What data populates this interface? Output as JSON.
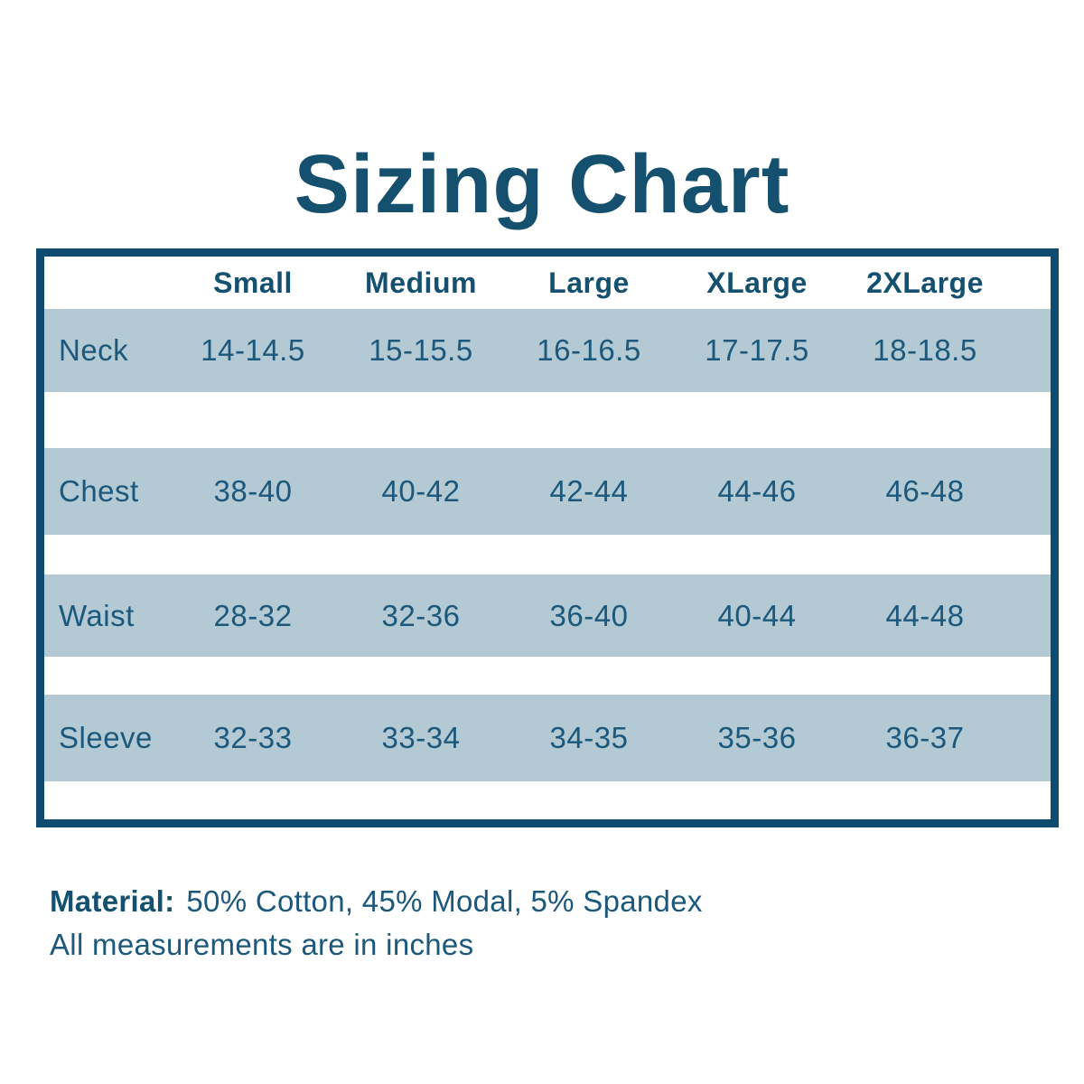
{
  "page": {
    "title": "Sizing Chart",
    "footer": {
      "material_label": "Material:",
      "material_value": "50% Cotton, 45% Modal, 5% Spandex",
      "note": "All measurements are in inches"
    }
  },
  "table": {
    "columns": [
      "Small",
      "Medium",
      "Large",
      "XLarge",
      "2XLarge"
    ],
    "rows": [
      {
        "label": "Neck",
        "values": [
          "14-14.5",
          "15-15.5",
          "16-16.5",
          "17-17.5",
          "18-18.5"
        ]
      },
      {
        "label": "Chest",
        "values": [
          "38-40",
          "40-42",
          "42-44",
          "44-46",
          "46-48"
        ]
      },
      {
        "label": "Waist",
        "values": [
          "28-32",
          "32-36",
          "36-40",
          "40-44",
          "44-48"
        ]
      },
      {
        "label": "Sleeve",
        "values": [
          "32-33",
          "33-34",
          "34-35",
          "35-36",
          "36-37"
        ]
      }
    ]
  },
  "colors": {
    "navy_text": "#15506f",
    "table_border": "#0d4c6e",
    "cell_text": "#1b587b",
    "row_shade": "#b3c9d3",
    "background": "#ffffff"
  },
  "chart_data": {
    "type": "table",
    "title": "Sizing Chart",
    "columns": [
      "Small",
      "Medium",
      "Large",
      "XLarge",
      "2XLarge"
    ],
    "row_labels": [
      "Neck",
      "Chest",
      "Waist",
      "Sleeve"
    ],
    "cells": [
      [
        "14-14.5",
        "15-15.5",
        "16-16.5",
        "17-17.5",
        "18-18.5"
      ],
      [
        "38-40",
        "40-42",
        "42-44",
        "44-46",
        "46-48"
      ],
      [
        "28-32",
        "32-36",
        "36-40",
        "40-44",
        "44-48"
      ],
      [
        "32-33",
        "33-34",
        "34-35",
        "35-36",
        "36-37"
      ]
    ],
    "units": "inches",
    "notes": [
      "Material: 50% Cotton, 45% Modal, 5% Spandex",
      "All measurements are in inches"
    ]
  }
}
